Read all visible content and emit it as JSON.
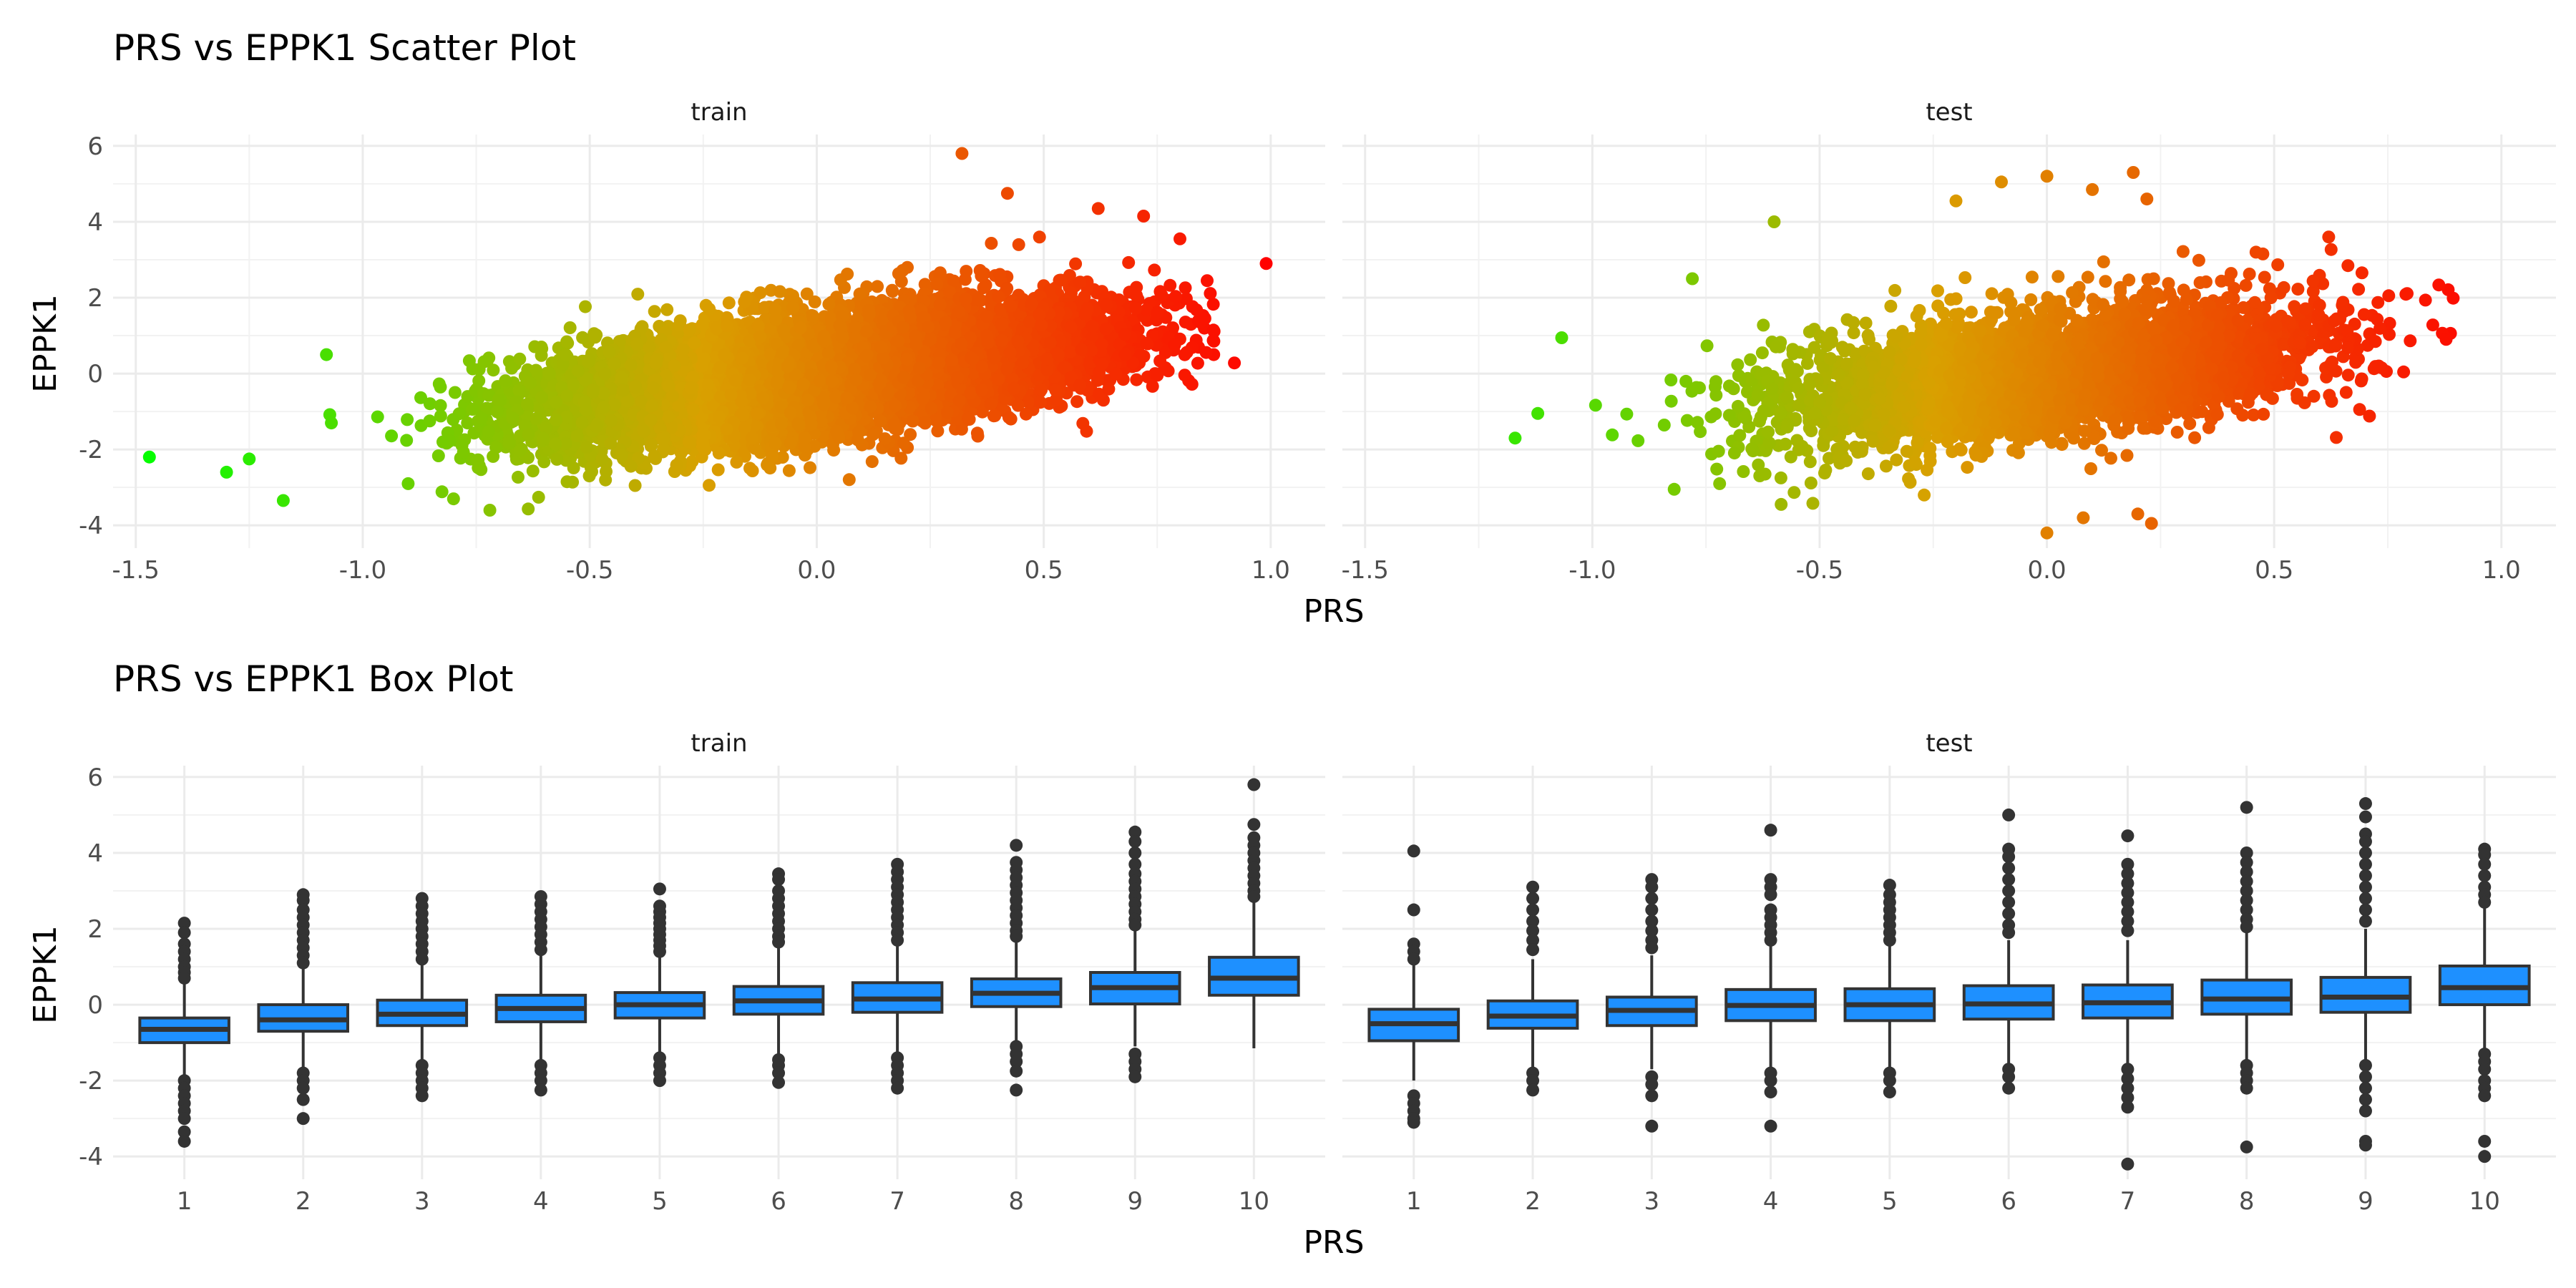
{
  "chart_data": [
    {
      "type": "scatter",
      "title": "PRS vs EPPK1 Scatter Plot",
      "xlabel": "PRS",
      "ylabel": "EPPK1",
      "xlim": [
        -1.55,
        1.12
      ],
      "ylim": [
        -4.6,
        6.3
      ],
      "xticks": [
        -1.5,
        -1.0,
        -0.5,
        0.0,
        0.5,
        1.0
      ],
      "xtick_labels": [
        "-1.5",
        "-1.0",
        "-0.5",
        "0.0",
        "0.5",
        "1.0"
      ],
      "yticks": [
        -4,
        -2,
        0,
        2,
        4,
        6
      ],
      "ytick_labels": [
        "-4",
        "-2",
        "0",
        "2",
        "4",
        "6"
      ],
      "color_scale": {
        "low": "#00ff00",
        "mid": "#d9a000",
        "high": "#ff0000"
      },
      "grid": true,
      "legend": "none",
      "facets": [
        {
          "name": "train",
          "point_cloud": {
            "n": 9000,
            "x_mean": 0.0,
            "x_sd": 0.3,
            "slope": 1.55,
            "intercept": 0.0,
            "resid_sd": 0.75
          },
          "points": [
            [
              -1.47,
              -2.2
            ],
            [
              -1.3,
              -2.6
            ],
            [
              -1.25,
              -2.25
            ],
            [
              -1.08,
              0.5
            ],
            [
              -0.9,
              -2.9
            ],
            [
              -0.8,
              -3.3
            ],
            [
              -0.72,
              -3.6
            ],
            [
              -0.55,
              -2.85
            ],
            [
              -0.4,
              -2.95
            ],
            [
              0.32,
              5.8
            ],
            [
              0.42,
              4.75
            ],
            [
              0.62,
              4.35
            ],
            [
              0.72,
              4.15
            ],
            [
              0.8,
              3.55
            ],
            [
              0.86,
              2.45
            ],
            [
              0.92,
              0.28
            ],
            [
              0.99,
              2.9
            ],
            [
              0.75,
              1.6
            ],
            [
              0.68,
              0.5
            ],
            [
              0.58,
              -0.3
            ]
          ]
        },
        {
          "name": "test",
          "point_cloud": {
            "n": 3600,
            "x_mean": 0.0,
            "x_sd": 0.3,
            "slope": 1.4,
            "intercept": 0.0,
            "resid_sd": 0.8
          },
          "points": [
            [
              -1.17,
              -1.7
            ],
            [
              -1.12,
              -1.05
            ],
            [
              -0.78,
              2.5
            ],
            [
              -0.6,
              4.0
            ],
            [
              -0.82,
              -3.05
            ],
            [
              -0.72,
              -2.9
            ],
            [
              -0.62,
              -2.65
            ],
            [
              -0.27,
              -3.2
            ],
            [
              -0.2,
              4.55
            ],
            [
              -0.1,
              5.05
            ],
            [
              0.0,
              5.2
            ],
            [
              0.1,
              4.85
            ],
            [
              0.19,
              5.3
            ],
            [
              0.22,
              4.6
            ],
            [
              0.0,
              -4.2
            ],
            [
              0.08,
              -3.8
            ],
            [
              0.2,
              -3.7
            ],
            [
              0.23,
              -3.95
            ],
            [
              0.46,
              3.2
            ],
            [
              0.62,
              3.6
            ],
            [
              0.73,
              0.2
            ],
            [
              0.6,
              1.8
            ]
          ]
        }
      ]
    },
    {
      "type": "box",
      "title": "PRS vs EPPK1 Box Plot",
      "xlabel": "PRS",
      "ylabel": "EPPK1",
      "categories": [
        "1",
        "2",
        "3",
        "4",
        "5",
        "6",
        "7",
        "8",
        "9",
        "10"
      ],
      "ylim": [
        -4.6,
        6.3
      ],
      "yticks": [
        -4,
        -2,
        0,
        2,
        4,
        6
      ],
      "ytick_labels": [
        "-4",
        "-2",
        "0",
        "2",
        "4",
        "6"
      ],
      "box_color": "#1e90ff",
      "grid": true,
      "legend": "none",
      "facets": [
        {
          "name": "train",
          "boxes": [
            {
              "q1": -1.0,
              "median": -0.65,
              "q3": -0.35,
              "lower": -1.9,
              "upper": 0.6,
              "outliers": [
                2.15,
                1.9,
                1.6,
                1.4,
                1.2,
                1.0,
                0.85,
                0.7,
                -2.0,
                -2.2,
                -2.4,
                -2.6,
                -2.8,
                -3.0,
                -3.35,
                -3.6
              ]
            },
            {
              "q1": -0.7,
              "median": -0.4,
              "q3": 0.0,
              "lower": -1.7,
              "upper": 1.0,
              "outliers": [
                2.9,
                2.75,
                2.5,
                2.3,
                2.1,
                1.9,
                1.7,
                1.5,
                1.3,
                1.1,
                -1.8,
                -2.0,
                -2.2,
                -2.5,
                -3.0
              ]
            },
            {
              "q1": -0.55,
              "median": -0.25,
              "q3": 0.12,
              "lower": -1.5,
              "upper": 1.1,
              "outliers": [
                2.8,
                2.6,
                2.4,
                2.2,
                2.0,
                1.8,
                1.6,
                1.4,
                1.2,
                -1.6,
                -1.8,
                -2.0,
                -2.2,
                -2.4
              ]
            },
            {
              "q1": -0.45,
              "median": -0.1,
              "q3": 0.25,
              "lower": -1.5,
              "upper": 1.3,
              "outliers": [
                2.85,
                2.65,
                2.45,
                2.25,
                2.05,
                1.85,
                1.65,
                1.45,
                -1.6,
                -1.8,
                -2.0,
                -2.25
              ]
            },
            {
              "q1": -0.35,
              "median": 0.0,
              "q3": 0.32,
              "lower": -1.35,
              "upper": 1.3,
              "outliers": [
                3.05,
                2.6,
                2.45,
                2.3,
                2.15,
                2.0,
                1.85,
                1.7,
                1.55,
                1.4,
                -1.4,
                -1.6,
                -1.8,
                -2.0
              ]
            },
            {
              "q1": -0.25,
              "median": 0.1,
              "q3": 0.48,
              "lower": -1.35,
              "upper": 1.55,
              "outliers": [
                3.45,
                3.3,
                3.0,
                2.8,
                2.6,
                2.4,
                2.2,
                2.0,
                1.8,
                1.65,
                -1.45,
                -1.6,
                -1.8,
                -2.05
              ]
            },
            {
              "q1": -0.2,
              "median": 0.15,
              "q3": 0.58,
              "lower": -1.3,
              "upper": 1.6,
              "outliers": [
                3.7,
                3.5,
                3.3,
                3.1,
                2.9,
                2.7,
                2.5,
                2.3,
                2.1,
                1.9,
                1.7,
                -1.4,
                -1.6,
                -1.8,
                -2.0,
                -2.2
              ]
            },
            {
              "q1": -0.05,
              "median": 0.3,
              "q3": 0.68,
              "lower": -1.0,
              "upper": 1.7,
              "outliers": [
                4.2,
                3.75,
                3.55,
                3.35,
                3.15,
                2.95,
                2.75,
                2.55,
                2.35,
                2.15,
                1.95,
                1.8,
                -1.1,
                -1.3,
                -1.5,
                -1.75,
                -2.25
              ]
            },
            {
              "q1": 0.02,
              "median": 0.45,
              "q3": 0.85,
              "lower": -1.1,
              "upper": 2.0,
              "outliers": [
                4.55,
                4.3,
                4.0,
                3.7,
                3.45,
                3.25,
                3.05,
                2.85,
                2.65,
                2.45,
                2.25,
                2.1,
                -1.3,
                -1.5,
                -1.7,
                -1.9
              ]
            },
            {
              "q1": 0.25,
              "median": 0.7,
              "q3": 1.25,
              "lower": -1.15,
              "upper": 2.7,
              "outliers": [
                5.8,
                4.75,
                4.4,
                4.2,
                4.0,
                3.8,
                3.6,
                3.4,
                3.2,
                3.0,
                2.85
              ]
            }
          ]
        },
        {
          "name": "test",
          "boxes": [
            {
              "q1": -0.95,
              "median": -0.5,
              "q3": -0.12,
              "lower": -2.0,
              "upper": 1.1,
              "outliers": [
                4.05,
                2.5,
                1.6,
                1.4,
                1.2,
                -2.4,
                -2.6,
                -2.8,
                -3.0,
                -3.1
              ]
            },
            {
              "q1": -0.62,
              "median": -0.3,
              "q3": 0.1,
              "lower": -1.7,
              "upper": 1.2,
              "outliers": [
                3.1,
                2.8,
                2.5,
                2.2,
                1.95,
                1.7,
                1.45,
                -1.8,
                -2.0,
                -2.25
              ]
            },
            {
              "q1": -0.55,
              "median": -0.15,
              "q3": 0.2,
              "lower": -1.7,
              "upper": 1.3,
              "outliers": [
                3.3,
                3.1,
                2.8,
                2.5,
                2.2,
                1.95,
                1.7,
                1.5,
                -1.9,
                -2.1,
                -2.4,
                -3.2
              ]
            },
            {
              "q1": -0.42,
              "median": -0.02,
              "q3": 0.4,
              "lower": -1.7,
              "upper": 1.6,
              "outliers": [
                4.6,
                3.3,
                3.1,
                2.9,
                2.5,
                2.3,
                2.1,
                1.9,
                1.7,
                -1.8,
                -2.0,
                -2.3,
                -3.2
              ]
            },
            {
              "q1": -0.42,
              "median": 0.0,
              "q3": 0.42,
              "lower": -1.7,
              "upper": 1.6,
              "outliers": [
                3.15,
                2.9,
                2.7,
                2.5,
                2.3,
                2.1,
                1.9,
                1.7,
                -1.8,
                -2.0,
                -2.3
              ]
            },
            {
              "q1": -0.38,
              "median": 0.02,
              "q3": 0.5,
              "lower": -1.6,
              "upper": 1.7,
              "outliers": [
                5.0,
                4.1,
                3.9,
                3.6,
                3.3,
                3.0,
                2.7,
                2.4,
                2.1,
                1.9,
                -1.7,
                -1.9,
                -2.2
              ]
            },
            {
              "q1": -0.35,
              "median": 0.05,
              "q3": 0.52,
              "lower": -1.6,
              "upper": 1.7,
              "outliers": [
                4.45,
                3.7,
                3.45,
                3.2,
                2.95,
                2.7,
                2.45,
                2.2,
                1.95,
                -1.7,
                -1.95,
                -2.2,
                -2.45,
                -2.7,
                -4.2
              ]
            },
            {
              "q1": -0.25,
              "median": 0.15,
              "q3": 0.65,
              "lower": -1.5,
              "upper": 1.9,
              "outliers": [
                5.2,
                4.0,
                3.75,
                3.5,
                3.25,
                3.0,
                2.75,
                2.5,
                2.25,
                2.05,
                -1.6,
                -1.8,
                -2.0,
                -2.2,
                -3.75
              ]
            },
            {
              "q1": -0.2,
              "median": 0.2,
              "q3": 0.72,
              "lower": -1.5,
              "upper": 2.0,
              "outliers": [
                5.3,
                4.95,
                4.5,
                4.3,
                4.0,
                3.7,
                3.4,
                3.1,
                2.8,
                2.5,
                2.2,
                -1.6,
                -1.9,
                -2.2,
                -2.5,
                -2.8,
                -3.6,
                -3.7
              ]
            },
            {
              "q1": 0.0,
              "median": 0.45,
              "q3": 1.02,
              "lower": -1.2,
              "upper": 2.6,
              "outliers": [
                4.1,
                3.95,
                3.7,
                3.4,
                3.1,
                2.9,
                2.7,
                -1.3,
                -1.5,
                -1.7,
                -2.0,
                -2.2,
                -2.4,
                -3.6,
                -4.0
              ]
            }
          ]
        }
      ]
    }
  ]
}
